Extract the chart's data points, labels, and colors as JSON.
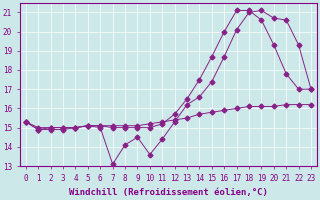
{
  "line1_x": [
    0,
    1,
    2,
    3,
    4,
    5,
    6,
    7,
    8,
    9,
    10,
    11,
    12,
    13,
    14,
    15,
    16,
    17,
    18,
    19,
    20,
    21,
    22,
    23
  ],
  "line1_y": [
    15.3,
    14.9,
    15.0,
    15.0,
    15.0,
    15.1,
    15.1,
    15.1,
    15.1,
    15.1,
    15.2,
    15.3,
    15.4,
    15.5,
    15.7,
    15.8,
    15.9,
    16.0,
    16.1,
    16.1,
    16.1,
    16.2,
    16.2,
    16.2
  ],
  "line2_x": [
    0,
    1,
    2,
    3,
    4,
    5,
    6,
    7,
    8,
    9,
    10,
    11,
    12,
    13,
    14,
    15,
    16,
    17,
    18,
    19,
    20,
    21,
    22,
    23
  ],
  "line2_y": [
    15.3,
    15.0,
    15.0,
    15.0,
    15.0,
    15.1,
    15.1,
    15.0,
    15.0,
    15.0,
    15.0,
    15.2,
    15.7,
    16.5,
    17.5,
    18.7,
    20.0,
    21.1,
    21.1,
    20.6,
    19.3,
    17.8,
    17.0,
    17.0
  ],
  "line3_x": [
    0,
    1,
    2,
    3,
    4,
    5,
    6,
    7,
    8,
    9,
    10,
    11,
    12,
    13,
    14,
    15,
    16,
    17,
    18,
    19,
    20,
    21,
    22,
    23
  ],
  "line3_y": [
    15.3,
    14.9,
    14.9,
    14.9,
    15.0,
    15.1,
    15.0,
    13.1,
    14.1,
    14.5,
    13.6,
    14.4,
    15.3,
    16.2,
    16.6,
    17.4,
    18.7,
    20.1,
    21.0,
    21.1,
    20.7,
    20.6,
    19.3,
    17.0
  ],
  "line_color": "#882288",
  "marker": "D",
  "marker_size": 2.5,
  "xlim": [
    -0.5,
    23.5
  ],
  "ylim": [
    13.0,
    21.5
  ],
  "yticks": [
    13,
    14,
    15,
    16,
    17,
    18,
    19,
    20,
    21
  ],
  "xticks": [
    0,
    1,
    2,
    3,
    4,
    5,
    6,
    7,
    8,
    9,
    10,
    11,
    12,
    13,
    14,
    15,
    16,
    17,
    18,
    19,
    20,
    21,
    22,
    23
  ],
  "xlabel": "Windchill (Refroidissement éolien,°C)",
  "bg_color": "#cce8e8",
  "grid_color": "#ffffff",
  "tick_color": "#880088",
  "spine_color": "#880088",
  "label_color": "#880088",
  "font_size_tick": 5.5,
  "font_size_label": 6.5
}
